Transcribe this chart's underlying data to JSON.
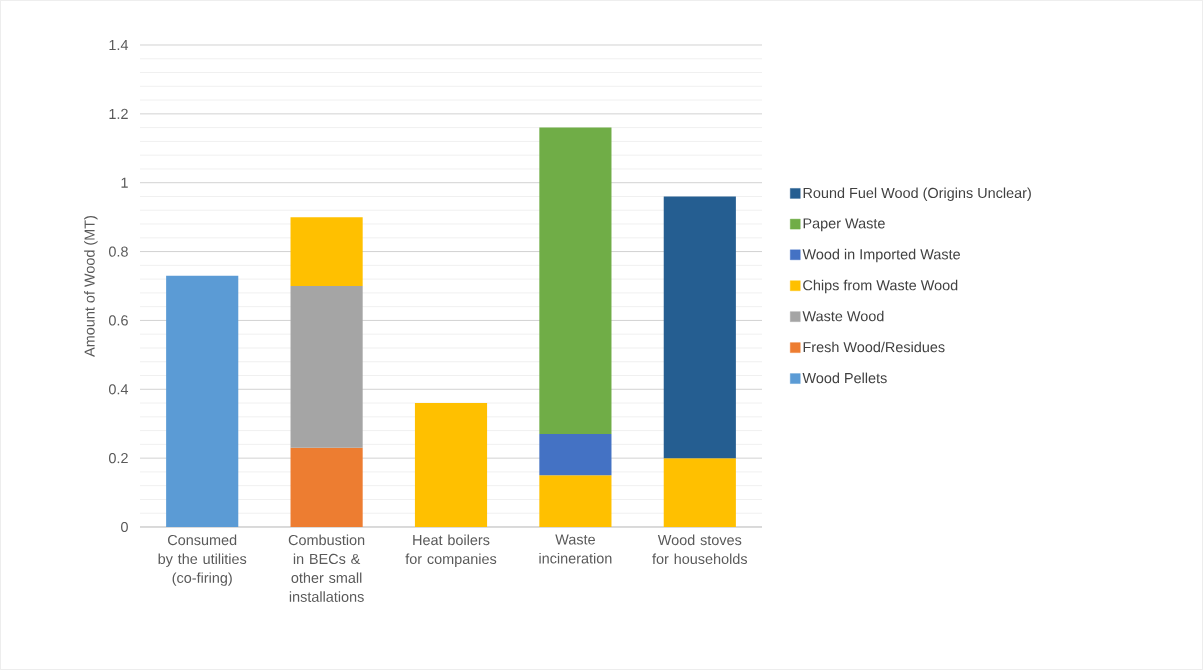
{
  "chart_data": {
    "type": "bar",
    "stacked": true,
    "ylabel": "Amount of Wood (MT)",
    "categories": [
      "Consumed by the utilities (co-firing)",
      "Combustion in BECs & other small installations",
      "Heat boilers for companies",
      "Waste incineration",
      "Wood stoves for households"
    ],
    "series": [
      {
        "name": "Wood Pellets",
        "color": "#5b9bd5",
        "values": [
          0.73,
          null,
          null,
          null,
          null
        ]
      },
      {
        "name": "Fresh Wood/Residues",
        "color": "#ed7d31",
        "values": [
          null,
          0.23,
          null,
          null,
          null
        ]
      },
      {
        "name": "Waste Wood",
        "color": "#a5a5a5",
        "values": [
          null,
          0.47,
          null,
          null,
          null
        ]
      },
      {
        "name": "Chips from Waste Wood",
        "color": "#ffc000",
        "values": [
          null,
          0.2,
          0.36,
          0.15,
          0.2
        ]
      },
      {
        "name": "Wood in Imported Waste",
        "color": "#4472c4",
        "values": [
          null,
          null,
          null,
          0.12,
          null
        ]
      },
      {
        "name": "Paper Waste",
        "color": "#70ad47",
        "values": [
          null,
          null,
          null,
          0.89,
          null
        ]
      },
      {
        "name": "Round Fuel Wood (Origins Unclear)",
        "color": "#255e91",
        "values": [
          null,
          null,
          null,
          null,
          0.76
        ]
      }
    ],
    "ylim": [
      0,
      1.4
    ],
    "yticks": [
      0,
      0.2,
      0.4,
      0.6,
      0.8,
      1,
      1.2,
      1.4
    ],
    "grid": "y",
    "legend": "right"
  }
}
